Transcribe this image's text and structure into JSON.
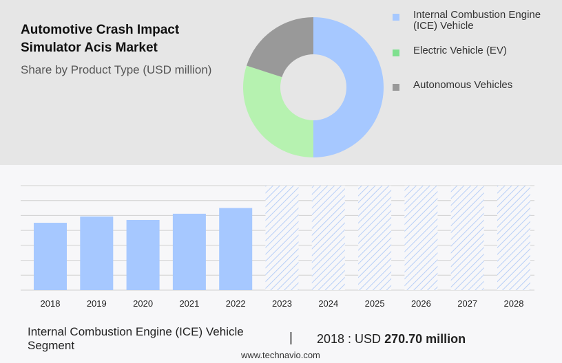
{
  "chart_data": [
    {
      "type": "pie",
      "title": "Automotive Crash Impact Simulator Acis Market",
      "subtitle": "Share by Product Type (USD million)",
      "donut": true,
      "slices": [
        {
          "name": "Internal Combustion Engine (ICE) Vehicle",
          "value": 50,
          "color": "#a6c8ff"
        },
        {
          "name": "Electric Vehicle (EV)",
          "value": 30,
          "color": "#b6f2b0"
        },
        {
          "name": "Autonomous Vehicles",
          "value": 20,
          "color": "#999999"
        }
      ],
      "legend": {
        "placement": "right",
        "swatch_colors": [
          "#a6c8ff",
          "#7fe08f",
          "#999999"
        ]
      }
    },
    {
      "type": "bar",
      "categories": [
        "2018",
        "2019",
        "2020",
        "2021",
        "2022",
        "2023",
        "2024",
        "2025",
        "2026",
        "2027",
        "2028"
      ],
      "series": [
        {
          "values": [
            270.7,
            296,
            282,
            307,
            330,
            null,
            null,
            null,
            null,
            null,
            null
          ],
          "color": "#a6c8ff"
        }
      ],
      "forecast_categories": [
        "2023",
        "2024",
        "2025",
        "2026",
        "2027",
        "2028"
      ],
      "forecast_style": "hatched",
      "ylim": [
        0,
        420
      ],
      "grid": true
    }
  ],
  "footer": {
    "segment": "Internal Combustion Engine (ICE) Vehicle Segment",
    "separator": "|",
    "year_label": "2018 : USD",
    "value": "270.70 million"
  },
  "watermark": "www.technavio.com"
}
